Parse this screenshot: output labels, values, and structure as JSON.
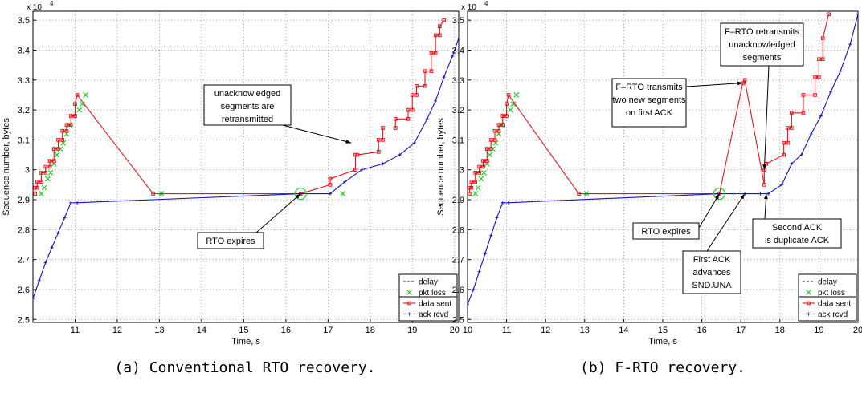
{
  "chart_data": [
    {
      "type": "line",
      "caption": "(a) Conventional RTO recovery.",
      "xlabel": "Time, s",
      "ylabel": "Sequence number, bytes",
      "y_multiplier": "x 10",
      "y_multiplier_exp": "4",
      "xlim": [
        10,
        20.1
      ],
      "ylim": [
        2.49,
        3.53
      ],
      "xticks": [
        11,
        12,
        13,
        14,
        15,
        16,
        17,
        18,
        19,
        20
      ],
      "yticks": [
        2.5,
        2.6,
        2.7,
        2.8,
        2.9,
        3.0,
        3.1,
        3.2,
        3.3,
        3.4,
        3.5
      ],
      "ytick_labels": [
        "2.5",
        "2.6",
        "2.7",
        "2.8",
        "2.9",
        "3",
        "3.1",
        "3.2",
        "3.3",
        "3.4",
        "3.5"
      ],
      "grid": true,
      "legend_position": "bottom-right",
      "legend": [
        {
          "label": "delay",
          "style": "dashed",
          "color": "#000000"
        },
        {
          "label": "pkt loss",
          "style": "x",
          "color": "#22cc22"
        },
        {
          "label": "data sent",
          "style": "line-square",
          "color": "#e8141b"
        },
        {
          "label": "ack rcvd",
          "style": "line-star",
          "color": "#1414c8"
        }
      ],
      "series": [
        {
          "name": "data sent",
          "color": "#e8141b",
          "x": [
            10.05,
            10.05,
            10.1,
            10.1,
            10.2,
            10.2,
            10.3,
            10.3,
            10.4,
            10.4,
            10.5,
            10.5,
            10.6,
            10.6,
            10.7,
            10.7,
            10.8,
            10.8,
            10.9,
            10.9,
            11.0,
            11.0,
            11.05,
            12.85,
            16.35,
            17.05,
            17.05,
            17.65,
            17.65,
            17.7,
            18.2,
            18.2,
            18.3,
            18.3,
            18.6,
            18.6,
            18.9,
            18.9,
            19.0,
            19.0,
            19.1,
            19.1,
            19.3,
            19.3,
            19.45,
            19.45,
            19.55,
            19.55,
            19.65,
            19.65,
            19.75
          ],
          "y": [
            2.92,
            2.94,
            2.94,
            2.96,
            2.96,
            2.99,
            2.99,
            3.01,
            3.01,
            3.03,
            3.03,
            3.07,
            3.07,
            3.1,
            3.1,
            3.13,
            3.13,
            3.15,
            3.15,
            3.18,
            3.18,
            3.22,
            3.25,
            2.92,
            2.92,
            2.95,
            2.97,
            3.0,
            3.05,
            3.05,
            3.06,
            3.1,
            3.1,
            3.14,
            3.14,
            3.17,
            3.17,
            3.2,
            3.2,
            3.25,
            3.25,
            3.28,
            3.28,
            3.33,
            3.33,
            3.39,
            3.39,
            3.45,
            3.45,
            3.48,
            3.5
          ]
        },
        {
          "name": "ack rcvd",
          "color": "#1414c8",
          "x": [
            10.0,
            10.15,
            10.3,
            10.45,
            10.6,
            10.75,
            10.9,
            11.05,
            16.35,
            17.05,
            17.4,
            17.8,
            18.3,
            18.7,
            19.05,
            19.35,
            19.55,
            19.75,
            19.95,
            20.1
          ],
          "y": [
            2.57,
            2.63,
            2.69,
            2.74,
            2.79,
            2.84,
            2.89,
            2.89,
            2.92,
            2.92,
            2.96,
            3.0,
            3.02,
            3.05,
            3.09,
            3.17,
            3.23,
            3.31,
            3.38,
            3.44
          ]
        }
      ],
      "pkt_loss": {
        "x": [
          10.2,
          10.27,
          10.35,
          10.42,
          10.5,
          10.57,
          10.65,
          10.72,
          10.8,
          10.87,
          10.95,
          11.1,
          11.17,
          11.25,
          13.05,
          17.35
        ],
        "y": [
          2.92,
          2.94,
          2.97,
          2.99,
          3.02,
          3.05,
          3.07,
          3.09,
          3.12,
          3.15,
          3.18,
          3.2,
          3.22,
          3.25,
          2.92,
          2.92
        ]
      },
      "marker_circle": {
        "x": 16.35,
        "y": 2.92
      },
      "annotations": [
        {
          "lines": [
            "unacknowledged",
            "segments are",
            "retransmitted"
          ],
          "arrow_to": [
            17.55,
            3.09
          ]
        },
        {
          "lines": [
            "RTO expires"
          ],
          "arrow_to": [
            16.35,
            2.92
          ]
        }
      ]
    },
    {
      "type": "line",
      "caption": "(b) F-RTO recovery.",
      "xlabel": "Time, s",
      "ylabel": "Sequence number, bytes",
      "y_multiplier": "x 10",
      "y_multiplier_exp": "4",
      "xlim": [
        10,
        20
      ],
      "ylim": [
        2.49,
        3.53
      ],
      "xticks": [
        10,
        11,
        12,
        13,
        14,
        15,
        16,
        17,
        18,
        19,
        20
      ],
      "yticks": [
        2.5,
        2.6,
        2.7,
        2.8,
        2.9,
        3.0,
        3.1,
        3.2,
        3.3,
        3.4,
        3.5
      ],
      "ytick_labels": [
        "2.5",
        "2.6",
        "2.7",
        "2.8",
        "2.9",
        "3",
        "3.1",
        "3.2",
        "3.3",
        "3.4",
        "3.5"
      ],
      "grid": true,
      "legend_position": "bottom-right",
      "legend": [
        {
          "label": "delay",
          "style": "dashed",
          "color": "#000000"
        },
        {
          "label": "pkt loss",
          "style": "x",
          "color": "#22cc22"
        },
        {
          "label": "data sent",
          "style": "line-square",
          "color": "#e8141b"
        },
        {
          "label": "ack rcvd",
          "style": "line-star",
          "color": "#1414c8"
        }
      ],
      "series": [
        {
          "name": "data sent",
          "color": "#e8141b",
          "x": [
            10.05,
            10.05,
            10.1,
            10.1,
            10.2,
            10.2,
            10.3,
            10.3,
            10.4,
            10.4,
            10.5,
            10.5,
            10.6,
            10.6,
            10.7,
            10.7,
            10.8,
            10.8,
            10.9,
            10.9,
            11.0,
            11.0,
            11.05,
            12.85,
            16.45,
            17.05,
            17.1,
            17.6,
            17.6,
            17.65,
            18.1,
            18.1,
            18.2,
            18.2,
            18.3,
            18.3,
            18.6,
            18.6,
            18.9,
            18.9,
            19.0,
            19.0,
            19.1,
            19.1,
            19.25
          ],
          "y": [
            2.92,
            2.94,
            2.94,
            2.96,
            2.96,
            2.99,
            2.99,
            3.01,
            3.01,
            3.03,
            3.03,
            3.07,
            3.07,
            3.1,
            3.1,
            3.13,
            3.13,
            3.15,
            3.15,
            3.18,
            3.18,
            3.22,
            3.25,
            2.92,
            2.92,
            3.29,
            3.3,
            2.95,
            3.0,
            3.02,
            3.05,
            3.09,
            3.09,
            3.14,
            3.14,
            3.19,
            3.19,
            3.25,
            3.25,
            3.31,
            3.31,
            3.37,
            3.37,
            3.44,
            3.52
          ]
        },
        {
          "name": "ack rcvd",
          "color": "#1414c8",
          "x": [
            10.0,
            10.15,
            10.3,
            10.45,
            10.6,
            10.75,
            10.9,
            11.05,
            16.45,
            16.8,
            17.1,
            17.5,
            17.7,
            18.05,
            18.3,
            18.55,
            18.8,
            19.05,
            19.3,
            19.55,
            19.8,
            20.0
          ],
          "y": [
            2.55,
            2.6,
            2.66,
            2.72,
            2.78,
            2.84,
            2.89,
            2.89,
            2.92,
            2.92,
            2.92,
            2.92,
            2.92,
            2.95,
            3.02,
            3.05,
            3.12,
            3.18,
            3.26,
            3.33,
            3.42,
            3.52
          ]
        }
      ],
      "pkt_loss": {
        "x": [
          10.2,
          10.27,
          10.35,
          10.42,
          10.5,
          10.57,
          10.65,
          10.72,
          10.8,
          10.87,
          10.95,
          11.1,
          11.17,
          11.25,
          13.05
        ],
        "y": [
          2.92,
          2.94,
          2.97,
          2.99,
          3.02,
          3.05,
          3.07,
          3.09,
          3.12,
          3.15,
          3.18,
          3.2,
          3.22,
          3.25,
          2.92
        ]
      },
      "marker_circle": {
        "x": 16.45,
        "y": 2.92
      },
      "annotations": [
        {
          "lines": [
            "F–RTO retransmits",
            "unacknowledged",
            "segments"
          ],
          "arrow_to": [
            17.6,
            3.0
          ]
        },
        {
          "lines": [
            "F–RTO transmits",
            "two new segments",
            "on first ACK"
          ],
          "arrow_to": [
            17.05,
            3.29
          ]
        },
        {
          "lines": [
            "RTO expires"
          ],
          "arrow_to": [
            16.45,
            2.92
          ]
        },
        {
          "lines": [
            "First ACK",
            "advances",
            "SND.UNA"
          ],
          "arrow_to": [
            17.1,
            2.92
          ]
        },
        {
          "lines": [
            "Second ACK",
            "is duplicate ACK"
          ],
          "arrow_to": [
            17.65,
            2.92
          ]
        }
      ]
    }
  ]
}
